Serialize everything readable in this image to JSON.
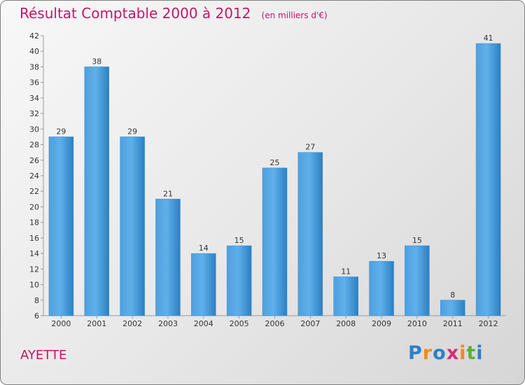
{
  "chart_data": {
    "type": "bar",
    "title": "Résultat Comptable 2000 à 2012",
    "subtitle": "(en milliers d'€)",
    "categories": [
      "2000",
      "2001",
      "2002",
      "2003",
      "2004",
      "2005",
      "2006",
      "2007",
      "2008",
      "2009",
      "2010",
      "2011",
      "2012"
    ],
    "values": [
      29,
      38,
      29,
      21,
      14,
      15,
      25,
      27,
      11,
      13,
      15,
      8,
      41
    ],
    "ylim": [
      6,
      42
    ],
    "yticks": [
      6,
      8,
      10,
      12,
      14,
      16,
      18,
      20,
      22,
      24,
      26,
      28,
      30,
      32,
      34,
      36,
      38,
      40,
      42
    ],
    "grid": false,
    "xlabel": "",
    "ylabel": "",
    "bar_color": "#4a9ee0"
  },
  "footer": {
    "commune": "AYETTE",
    "logo": {
      "letters": [
        "P",
        "r",
        "o",
        "x",
        "i",
        "t",
        "i"
      ],
      "colors": [
        "#2b80c8",
        "#f08a1d",
        "#2b80c8",
        "#d62a80",
        "#f08a1d",
        "#56b236",
        "#2b80c8"
      ]
    }
  }
}
